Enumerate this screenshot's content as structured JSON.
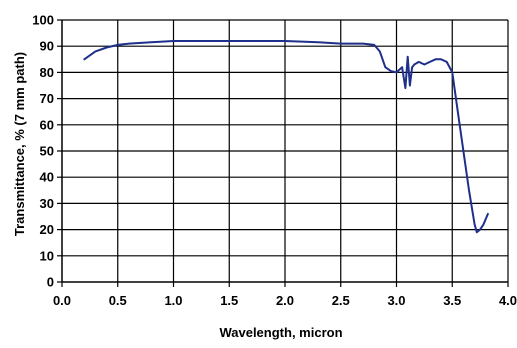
{
  "chart_data": {
    "type": "line",
    "title": "",
    "xlabel": "Wavelength, micron",
    "ylabel": "Transmittance, % (7 mm path)",
    "xlim": [
      0.0,
      4.0
    ],
    "ylim": [
      0,
      100
    ],
    "x_ticks": [
      0.0,
      0.5,
      1.0,
      1.5,
      2.0,
      2.5,
      3.0,
      3.5,
      4.0
    ],
    "x_tick_labels": [
      "0.0",
      "0.5",
      "1.0",
      "1.5",
      "2.0",
      "2.5",
      "3.0",
      "3.5",
      "4.0"
    ],
    "y_ticks": [
      0,
      10,
      20,
      30,
      40,
      50,
      60,
      70,
      80,
      90,
      100
    ],
    "y_tick_labels": [
      "0",
      "10",
      "20",
      "30",
      "40",
      "50",
      "60",
      "70",
      "80",
      "90",
      "100"
    ],
    "grid": true,
    "legend": "none",
    "line_color": "#1f2f8c",
    "series": [
      {
        "x": [
          0.2,
          0.3,
          0.4,
          0.5,
          0.6,
          0.8,
          1.0,
          1.5,
          2.0,
          2.3,
          2.5,
          2.7,
          2.8,
          2.85,
          2.9,
          2.95,
          3.0,
          3.05,
          3.08,
          3.1,
          3.12,
          3.14,
          3.16,
          3.2,
          3.25,
          3.3,
          3.35,
          3.4,
          3.45,
          3.5,
          3.55,
          3.6,
          3.65,
          3.7,
          3.72,
          3.75,
          3.78,
          3.82
        ],
        "y": [
          85,
          88,
          89.5,
          90.5,
          91,
          91.5,
          92,
          92,
          92,
          91.5,
          91,
          91,
          90.5,
          88,
          82,
          80.5,
          80,
          82,
          74,
          86,
          75,
          82,
          83,
          84,
          83,
          84,
          85,
          85,
          84,
          80,
          65,
          50,
          35,
          22,
          19,
          20,
          22,
          26
        ]
      }
    ]
  }
}
